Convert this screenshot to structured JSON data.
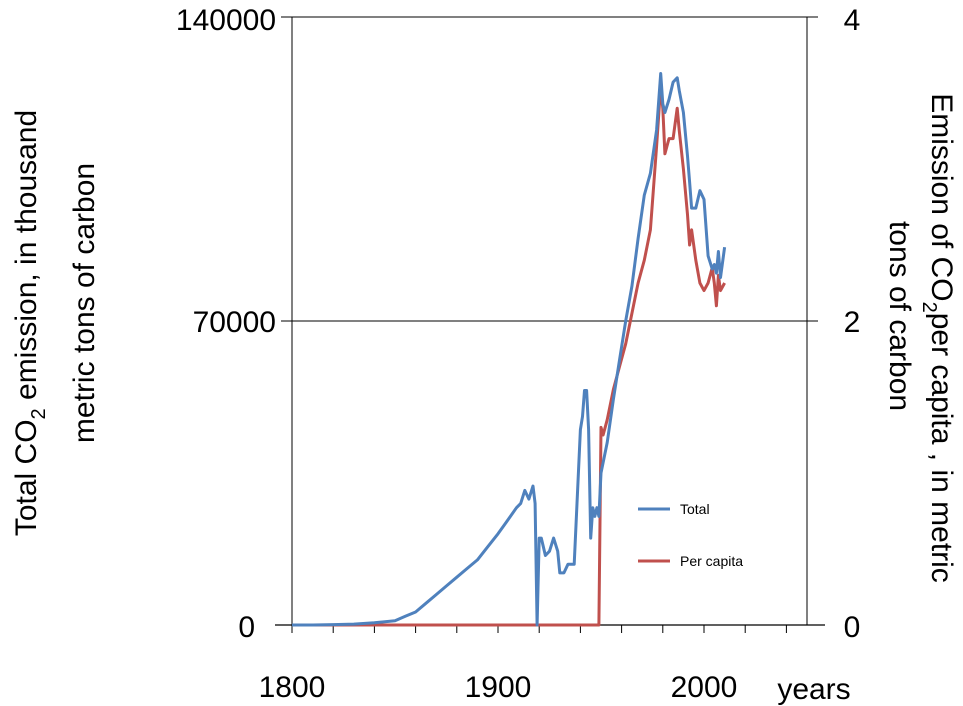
{
  "chart_data": {
    "type": "line",
    "x_unit_label": "years",
    "x_ticks": [
      "1800",
      "1900",
      "2000"
    ],
    "xlim": [
      1800,
      2050
    ],
    "y_left": {
      "label_parts": [
        "Total CO",
        "2",
        " emission, in thousand",
        "metric tons of carbon"
      ],
      "ticks": [
        "0",
        "70000",
        "140000"
      ],
      "ylim": [
        0,
        140000
      ]
    },
    "y_right": {
      "label_parts": [
        "Emission of CO",
        "2",
        "per capita , in metric",
        "tons of carbon"
      ],
      "ticks": [
        "0",
        "2",
        "4"
      ],
      "ylim": [
        0,
        4
      ]
    },
    "grid": "horizontal at 70000 and 140000",
    "legend_position": "inside lower-right",
    "series": [
      {
        "name": "Total",
        "axis": "left",
        "color": "#4f81bd",
        "x": [
          1800,
          1810,
          1820,
          1830,
          1840,
          1850,
          1855,
          1860,
          1865,
          1870,
          1875,
          1880,
          1885,
          1890,
          1895,
          1900,
          1903,
          1906,
          1909,
          1911,
          1913,
          1915,
          1917,
          1918,
          1919,
          1920,
          1921,
          1923,
          1925,
          1927,
          1929,
          1930,
          1932,
          1934,
          1937,
          1940,
          1941,
          1942,
          1943,
          1944,
          1945,
          1946,
          1947,
          1948,
          1949,
          1950,
          1953,
          1956,
          1959,
          1962,
          1965,
          1968,
          1971,
          1974,
          1977,
          1979,
          1980,
          1981,
          1983,
          1985,
          1987,
          1988,
          1990,
          1992,
          1993,
          1994,
          1996,
          1998,
          2000,
          2002,
          2004,
          2005,
          2006,
          2007,
          2008,
          2010
        ],
        "y": [
          0,
          0,
          100,
          200,
          500,
          1000,
          2000,
          3000,
          5000,
          7000,
          9000,
          11000,
          13000,
          15000,
          18000,
          21000,
          23000,
          25000,
          27000,
          28000,
          31000,
          29000,
          32000,
          28000,
          0,
          20000,
          20000,
          16000,
          17000,
          20000,
          17000,
          12000,
          12000,
          14000,
          14000,
          45000,
          48000,
          54000,
          54000,
          45000,
          20000,
          27000,
          25000,
          27000,
          25000,
          35000,
          42000,
          52000,
          61000,
          70000,
          78000,
          89000,
          99000,
          104000,
          114000,
          127000,
          120000,
          118000,
          121000,
          125000,
          126000,
          123000,
          118000,
          108000,
          102000,
          96000,
          96000,
          100000,
          98000,
          85000,
          82000,
          83000,
          81000,
          86000,
          80000,
          87000
        ]
      },
      {
        "name": "Per capita",
        "axis": "right",
        "color": "#c0504d",
        "x": [
          1800,
          1949,
          1950,
          1951,
          1953,
          1956,
          1959,
          1962,
          1965,
          1968,
          1971,
          1974,
          1977,
          1979,
          1980,
          1981,
          1983,
          1985,
          1987,
          1988,
          1990,
          1992,
          1993,
          1994,
          1996,
          1998,
          2000,
          2002,
          2004,
          2005,
          2006,
          2007,
          2008,
          2010
        ],
        "y": [
          0,
          0,
          1.3,
          1.25,
          1.35,
          1.55,
          1.7,
          1.85,
          2.05,
          2.25,
          2.4,
          2.6,
          3.15,
          3.55,
          3.4,
          3.1,
          3.2,
          3.2,
          3.4,
          3.25,
          3.0,
          2.7,
          2.5,
          2.6,
          2.4,
          2.25,
          2.2,
          2.25,
          2.35,
          2.25,
          2.1,
          2.3,
          2.2,
          2.25
        ]
      }
    ]
  }
}
